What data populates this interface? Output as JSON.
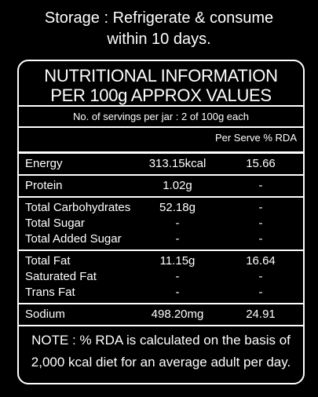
{
  "storage": [
    "Storage : Refrigerate & consume",
    "within 10 days."
  ],
  "title": [
    "NUTRITIONAL INFORMATION",
    "PER 100g APPROX VALUES"
  ],
  "servings": "No. of servings per jar : 2 of 100g each",
  "column_header": "Per Serve % RDA",
  "groups": [
    [
      {
        "name": "Energy",
        "value": "313.15kcal",
        "rda": "15.66"
      }
    ],
    [
      {
        "name": "Protein",
        "value": "1.02g",
        "rda": "-"
      }
    ],
    [
      {
        "name": "Total Carbohydrates",
        "value": "52.18g",
        "rda": "-"
      },
      {
        "name": "Total Sugar",
        "value": "-",
        "rda": "-"
      },
      {
        "name": "Total Added Sugar",
        "value": "-",
        "rda": "-"
      }
    ],
    [
      {
        "name": "Total Fat",
        "value": "11.15g",
        "rda": "16.64"
      },
      {
        "name": "Saturated Fat",
        "value": "-",
        "rda": "-"
      },
      {
        "name": "Trans Fat",
        "value": "-",
        "rda": "-"
      }
    ],
    [
      {
        "name": "Sodium",
        "value": "498.20mg",
        "rda": "24.91"
      }
    ]
  ],
  "note": [
    "NOTE : % RDA is calculated on the basis of",
    "2,000 kcal diet for an average adult per day."
  ]
}
